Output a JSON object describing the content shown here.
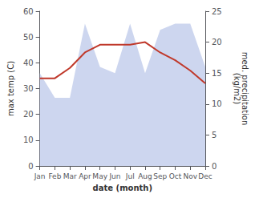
{
  "chart_data": {
    "type": "line",
    "categories": [
      "Jan",
      "Feb",
      "Mar",
      "Apr",
      "May",
      "Jun",
      "Jul",
      "Aug",
      "Sep",
      "Oct",
      "Nov",
      "Dec"
    ],
    "series": [
      {
        "type": "area",
        "axis": "y2",
        "color": "#b8c4e8",
        "values": [
          15,
          11,
          11,
          23,
          16,
          15,
          23,
          15,
          22,
          23,
          23,
          16
        ]
      },
      {
        "type": "line",
        "color": "#c0392b",
        "values": [
          34,
          34,
          38,
          44,
          47,
          47,
          47,
          48,
          44,
          41,
          37,
          32
        ]
      }
    ],
    "xlabel": "date (month)",
    "ylabel": "max temp (C)",
    "y2label": "med. precipitation\n(kg/m2)",
    "ylim": [
      0,
      60
    ],
    "yticks": [
      0,
      10,
      20,
      30,
      40,
      50,
      60
    ],
    "y2lim": [
      0,
      25
    ],
    "y2ticks": [
      0,
      5,
      10,
      15,
      20,
      25
    ],
    "grid": false
  }
}
